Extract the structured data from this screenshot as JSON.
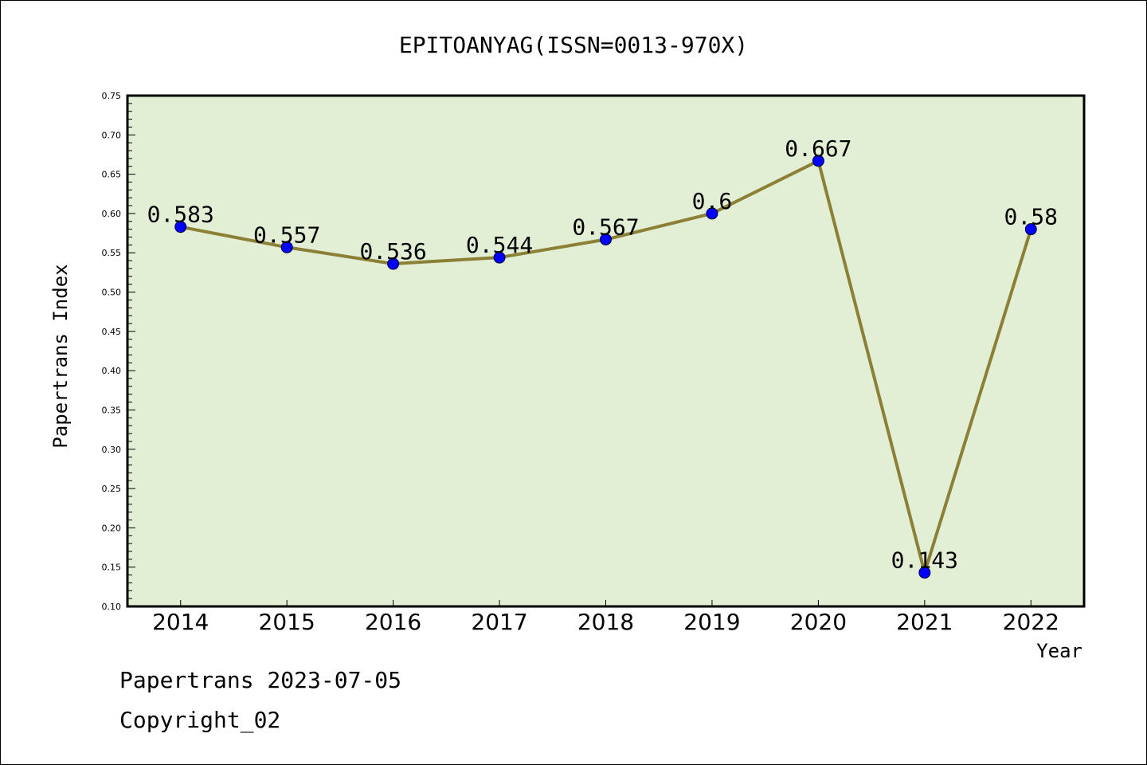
{
  "chart_data": {
    "type": "line",
    "title": "EPITOANYAG(ISSN=0013-970X)",
    "xlabel": "Year",
    "ylabel": "Papertrans Index",
    "categories": [
      "2014",
      "2015",
      "2016",
      "2017",
      "2018",
      "2019",
      "2020",
      "2021",
      "2022"
    ],
    "values": [
      0.583,
      0.557,
      0.536,
      0.544,
      0.567,
      0.6,
      0.667,
      0.143,
      0.58
    ],
    "data_labels": [
      "0.583",
      "0.557",
      "0.536",
      "0.544",
      "0.567",
      "0.6",
      "0.667",
      "0.143",
      "0.58"
    ],
    "ylim": [
      0.1,
      0.75
    ],
    "yticks": [
      "0.10",
      "0.15",
      "0.20",
      "0.25",
      "0.30",
      "0.35",
      "0.40",
      "0.45",
      "0.50",
      "0.55",
      "0.60",
      "0.65",
      "0.70",
      "0.75"
    ],
    "grid": false,
    "legend": "none",
    "colors": {
      "plot_background": "#e2efd5",
      "line": "#8b8035",
      "marker": "#0000ff"
    }
  },
  "footer": {
    "line1": "Papertrans 2023-07-05",
    "line2": "Copyright_02"
  }
}
